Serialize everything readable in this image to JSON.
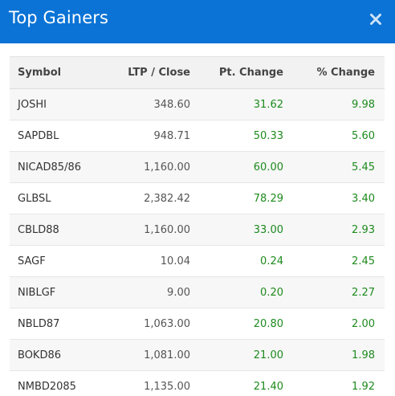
{
  "header": {
    "title": "Top Gainers",
    "close_icon": "close-icon",
    "background": "#0a73d5"
  },
  "table": {
    "columns": [
      "Symbol",
      "LTP / Close",
      "Pt. Change",
      "% Change"
    ],
    "rows": [
      {
        "symbol": "JOSHI",
        "ltp": "348.60",
        "pt_change": "31.62",
        "pct_change": "9.98"
      },
      {
        "symbol": "SAPDBL",
        "ltp": "948.71",
        "pt_change": "50.33",
        "pct_change": "5.60"
      },
      {
        "symbol": "NICAD85/86",
        "ltp": "1,160.00",
        "pt_change": "60.00",
        "pct_change": "5.45"
      },
      {
        "symbol": "GLBSL",
        "ltp": "2,382.42",
        "pt_change": "78.29",
        "pct_change": "3.40"
      },
      {
        "symbol": "CBLD88",
        "ltp": "1,160.00",
        "pt_change": "33.00",
        "pct_change": "2.93"
      },
      {
        "symbol": "SAGF",
        "ltp": "10.04",
        "pt_change": "0.24",
        "pct_change": "2.45"
      },
      {
        "symbol": "NIBLGF",
        "ltp": "9.00",
        "pt_change": "0.20",
        "pct_change": "2.27"
      },
      {
        "symbol": "NBLD87",
        "ltp": "1,063.00",
        "pt_change": "20.80",
        "pct_change": "2.00"
      },
      {
        "symbol": "BOKD86",
        "ltp": "1,081.00",
        "pt_change": "21.00",
        "pct_change": "1.98"
      },
      {
        "symbol": "NMBD2085",
        "ltp": "1,135.00",
        "pt_change": "21.40",
        "pct_change": "1.92"
      }
    ],
    "positive_color": "#1e8a1e"
  }
}
